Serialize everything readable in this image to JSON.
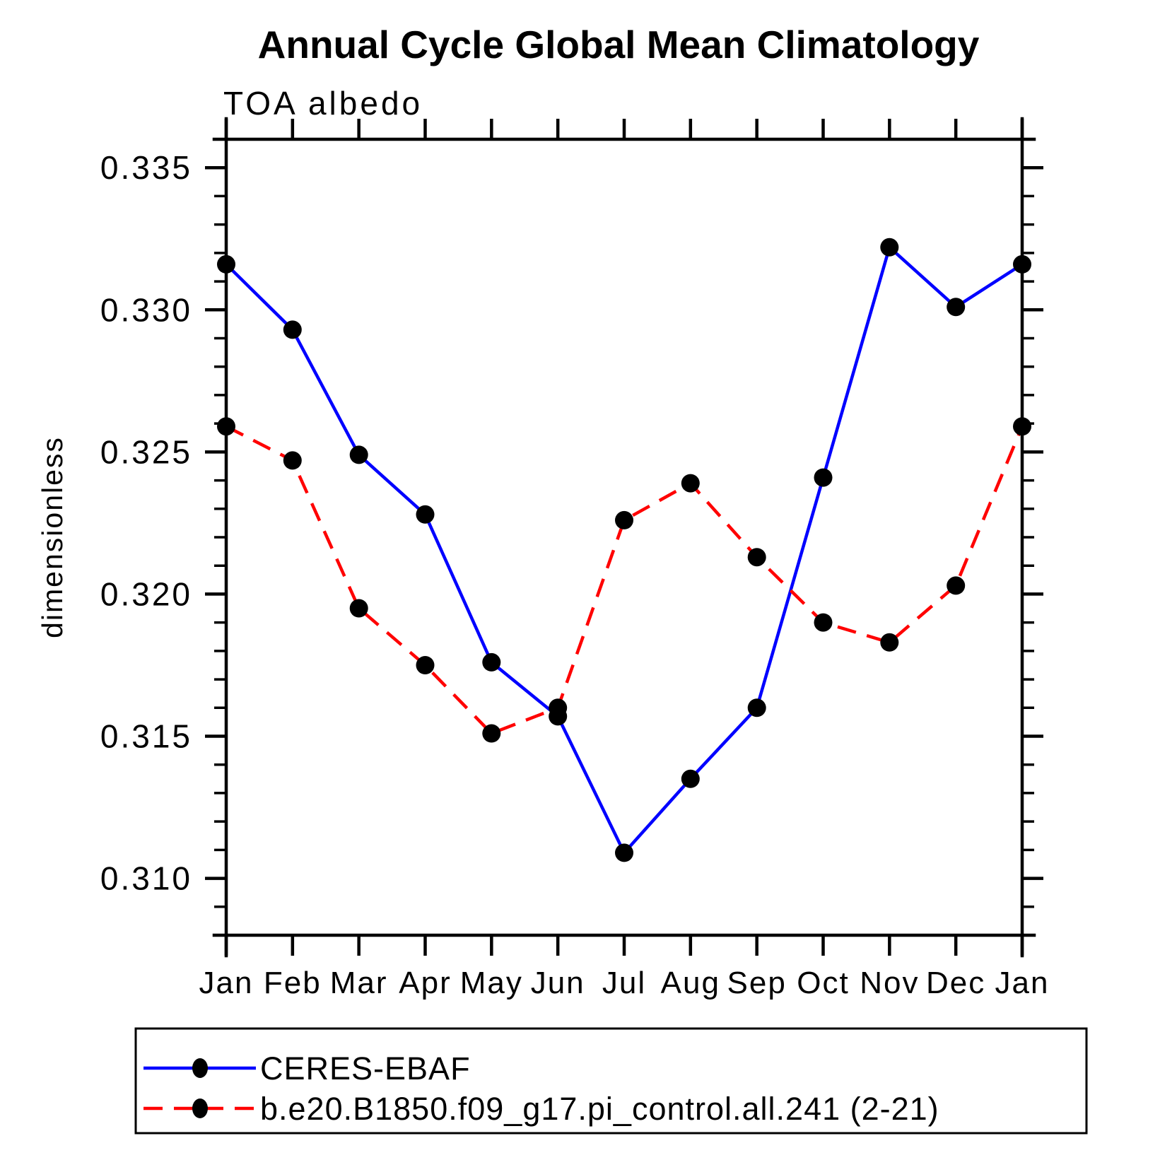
{
  "title": "Annual Cycle Global Mean Climatology",
  "subtitle": "TOA albedo",
  "ylabel": "dimensionless",
  "chart_data": {
    "type": "line",
    "categories": [
      "Jan",
      "Feb",
      "Mar",
      "Apr",
      "May",
      "Jun",
      "Jul",
      "Aug",
      "Sep",
      "Oct",
      "Nov",
      "Dec",
      "Jan"
    ],
    "series": [
      {
        "name": "CERES-EBAF",
        "color": "#0000ff",
        "style": "solid",
        "marker": "filled-circle",
        "values": [
          0.3316,
          0.3293,
          0.3249,
          0.3228,
          0.3176,
          0.3157,
          0.3109,
          0.3135,
          0.316,
          0.3241,
          0.3322,
          0.3301,
          0.3316
        ]
      },
      {
        "name": "b.e20.B1850.f09_g17.pi_control.all.241 (2-21)",
        "color": "#ff0000",
        "style": "dashed",
        "marker": "filled-circle",
        "values": [
          0.3259,
          0.3247,
          0.3195,
          0.3175,
          0.3151,
          0.316,
          0.3226,
          0.3239,
          0.3213,
          0.319,
          0.3183,
          0.3203,
          0.3259
        ]
      }
    ],
    "title": "Annual Cycle Global Mean Climatology",
    "subtitle": "TOA albedo",
    "xlabel": "",
    "ylabel": "dimensionless",
    "ylim": [
      0.308,
      0.336
    ],
    "yticks_major": [
      0.31,
      0.315,
      0.32,
      0.325,
      0.33,
      0.335
    ],
    "ytick_labels": [
      "0.310",
      "0.315",
      "0.320",
      "0.325",
      "0.330",
      "0.335"
    ],
    "minor_tick_step": 0.001,
    "marker_color": "#000000",
    "grid": "off",
    "legend_position": "bottom"
  },
  "legend": {
    "entries": [
      {
        "label": "CERES-EBAF"
      },
      {
        "label": "b.e20.B1850.f09_g17.pi_control.all.241 (2-21)"
      }
    ]
  }
}
